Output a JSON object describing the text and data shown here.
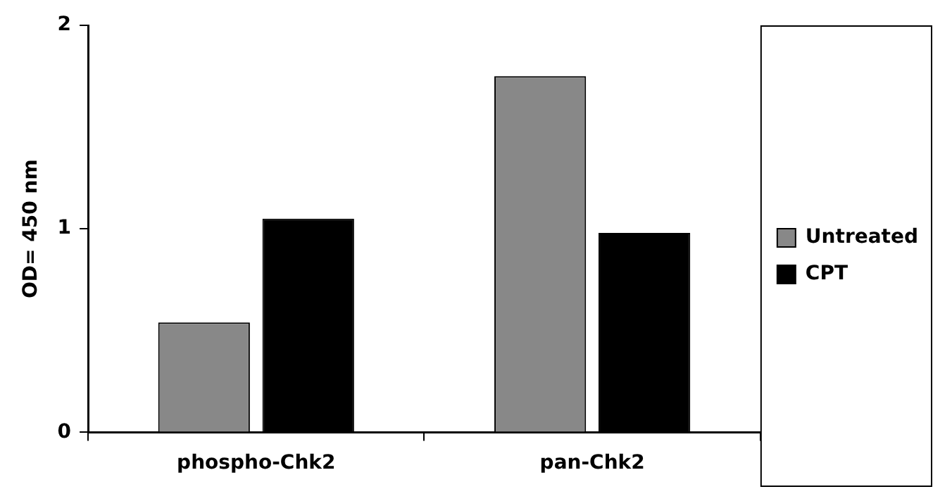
{
  "chart_data": {
    "type": "bar",
    "ylabel": "OD= 450 nm",
    "categories": [
      "phospho-Chk2",
      "pan-Chk2"
    ],
    "series": [
      {
        "name": "Untreated",
        "color": "#888888",
        "values": [
          0.54,
          1.75
        ]
      },
      {
        "name": "CPT",
        "color": "#000000",
        "values": [
          1.05,
          0.98
        ]
      }
    ],
    "ylim": [
      0,
      2
    ],
    "yticks": [
      0,
      1,
      2
    ],
    "grid": false,
    "legend": "right"
  }
}
